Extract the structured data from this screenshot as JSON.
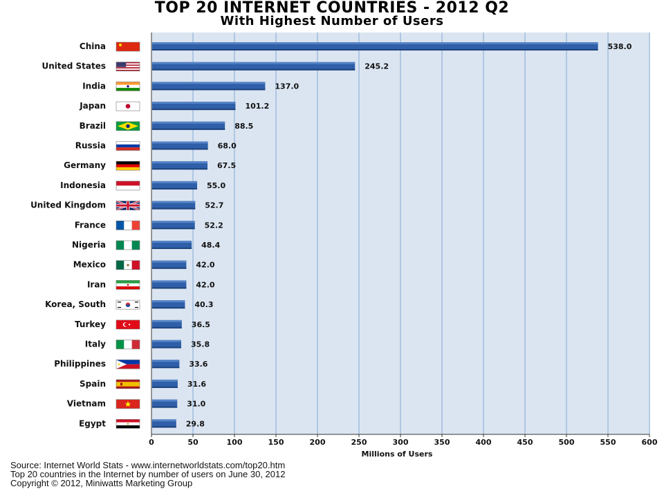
{
  "chart_data": {
    "type": "bar",
    "orientation": "horizontal",
    "title": "TOP 20 INTERNET COUNTRIES  - 2012 Q2",
    "subtitle": "With Highest Number of Users",
    "xlabel": "Millions of Users",
    "xlim": [
      0,
      600
    ],
    "xticks": [
      0,
      50,
      100,
      150,
      200,
      250,
      300,
      350,
      400,
      450,
      500,
      550,
      600
    ],
    "grid": true,
    "bar_color": "#2e5fa8",
    "plot_background": "#dbe5f1",
    "gridline_color": "#8fb2d9",
    "categories": [
      "China",
      "United States",
      "India",
      "Japan",
      "Brazil",
      "Russia",
      "Germany",
      "Indonesia",
      "United Kingdom",
      "France",
      "Nigeria",
      "Mexico",
      "Iran",
      "Korea, South",
      "Turkey",
      "Italy",
      "Philippines",
      "Spain",
      "Vietnam",
      "Egypt"
    ],
    "values": [
      538.0,
      245.2,
      137.0,
      101.2,
      88.5,
      68.0,
      67.5,
      55.0,
      52.7,
      52.2,
      48.4,
      42.0,
      42.0,
      40.3,
      36.5,
      35.8,
      33.6,
      31.6,
      31.0,
      29.8
    ],
    "value_labels": [
      "538.0",
      "245.2",
      "137.0",
      "101.2",
      "88.5",
      "68.0",
      "67.5",
      "55.0",
      "52.7",
      "52.2",
      "48.4",
      "42.0",
      "42.0",
      "40.3",
      "36.5",
      "35.8",
      "33.6",
      "31.6",
      "31.0",
      "29.8"
    ],
    "flags": [
      "china-flag-icon",
      "united-states-flag-icon",
      "india-flag-icon",
      "japan-flag-icon",
      "brazil-flag-icon",
      "russia-flag-icon",
      "germany-flag-icon",
      "indonesia-flag-icon",
      "united-kingdom-flag-icon",
      "france-flag-icon",
      "nigeria-flag-icon",
      "mexico-flag-icon",
      "iran-flag-icon",
      "korea-south-flag-icon",
      "turkey-flag-icon",
      "italy-flag-icon",
      "philippines-flag-icon",
      "spain-flag-icon",
      "vietnam-flag-icon",
      "egypt-flag-icon"
    ]
  },
  "footer": {
    "source": "Source: Internet World Stats  -  www.internetworldstats.com/top20.htm",
    "note": "Top 20 countries in the Internet by number of users on June 30, 2012",
    "copyright": "Copyright © 2012, Miniwatts Marketing Group"
  }
}
